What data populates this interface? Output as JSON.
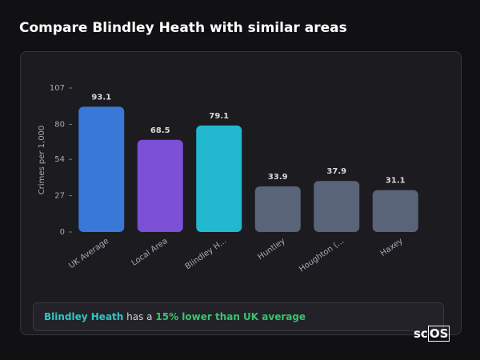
{
  "header": {
    "title": "Compare Blindley Heath with similar areas"
  },
  "chart_data": {
    "type": "bar",
    "y_label": "Crimes per 1,000",
    "categories": [
      "UK Average",
      "Local Area",
      "Blindley H...",
      "Huntley",
      "Houghton (...",
      "Haxey"
    ],
    "values": [
      93.1,
      68.5,
      79.1,
      33.9,
      37.9,
      31.1
    ],
    "colors": [
      "#3a78d8",
      "#7b4fd6",
      "#22b8cf",
      "#5a6478",
      "#5a6478",
      "#5a6478"
    ],
    "ylim": [
      0,
      107
    ],
    "yticks": [
      0,
      27,
      54,
      80,
      107
    ],
    "grid": false
  },
  "summary": {
    "place": "Blindley Heath",
    "text": "has a",
    "highlight": "15% lower than UK average"
  },
  "logo": {
    "left": "sc",
    "right": "OS"
  }
}
